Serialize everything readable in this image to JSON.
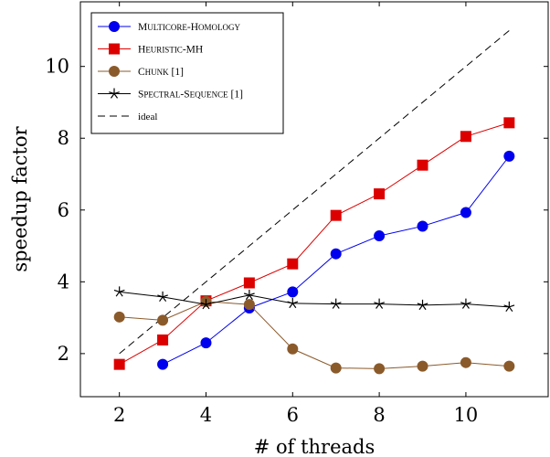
{
  "chart_data": {
    "type": "line",
    "xlabel": "# of threads",
    "ylabel": "speedup factor",
    "xlim": [
      1.1,
      11.9
    ],
    "ylim": [
      0.8,
      11.8
    ],
    "xticks": [
      2,
      4,
      6,
      8,
      10
    ],
    "yticks": [
      2,
      4,
      6,
      8,
      10
    ],
    "grid": false,
    "legend_position": "top-left",
    "series": [
      {
        "name": "Multicore-Homology",
        "color": "#0000ee",
        "marker": "circle",
        "line": "solid",
        "x": [
          3,
          4,
          5,
          6,
          7,
          8,
          9,
          10,
          11
        ],
        "values": [
          1.7,
          2.3,
          3.27,
          3.72,
          4.78,
          5.28,
          5.55,
          5.93,
          7.5
        ]
      },
      {
        "name": "Heuristic-MH",
        "color": "#dd0000",
        "marker": "square",
        "line": "solid",
        "x": [
          2,
          3,
          4,
          5,
          6,
          7,
          8,
          9,
          10,
          11
        ],
        "values": [
          1.7,
          2.38,
          3.47,
          3.97,
          4.5,
          5.85,
          6.45,
          7.25,
          8.05,
          8.43
        ]
      },
      {
        "name": "Chunk [1]",
        "color": "#8b5a2b",
        "marker": "circle",
        "line": "solid",
        "x": [
          2,
          3,
          4,
          5,
          6,
          7,
          8,
          9,
          10,
          11
        ],
        "values": [
          3.02,
          2.93,
          3.45,
          3.37,
          2.13,
          1.6,
          1.58,
          1.65,
          1.75,
          1.65
        ]
      },
      {
        "name": "Spectral-Sequence [1]",
        "color": "#000000",
        "marker": "star",
        "line": "solid",
        "x": [
          2,
          3,
          4,
          5,
          6,
          7,
          8,
          9,
          10,
          11
        ],
        "values": [
          3.72,
          3.58,
          3.37,
          3.63,
          3.4,
          3.38,
          3.38,
          3.35,
          3.38,
          3.3
        ]
      },
      {
        "name": "ideal",
        "color": "#000000",
        "marker": "none",
        "line": "dashed",
        "x": [
          2,
          11
        ],
        "values": [
          2,
          11
        ]
      }
    ]
  }
}
